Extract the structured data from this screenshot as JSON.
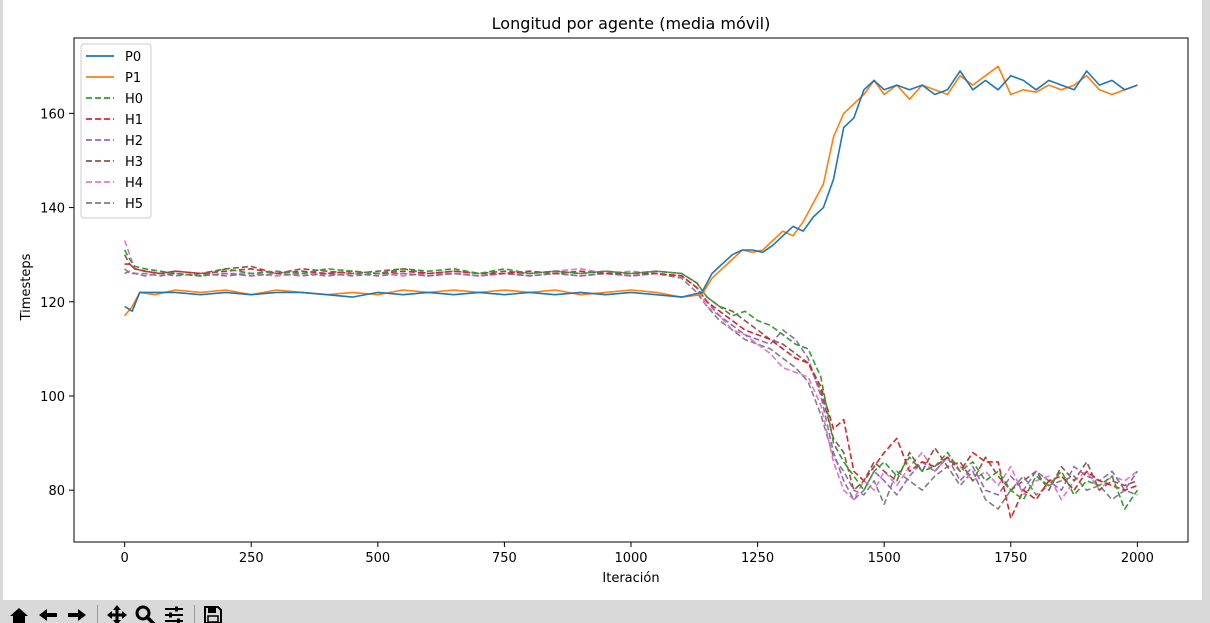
{
  "chart_data": {
    "type": "line",
    "title": "Longitud por agente (media móvil)",
    "xlabel": "Iteración",
    "ylabel": "Timesteps",
    "xlim": [
      -100,
      2100
    ],
    "ylim": [
      69,
      176
    ],
    "xticks": [
      0,
      250,
      500,
      750,
      1000,
      1250,
      1500,
      1750,
      2000
    ],
    "yticks": [
      80,
      100,
      120,
      140,
      160
    ],
    "grid": false,
    "legend_position": "top-left",
    "series": [
      {
        "name": "P0",
        "color": "#1f77b4",
        "dash": "solid",
        "x": [
          0,
          15,
          30,
          60,
          100,
          150,
          200,
          250,
          300,
          350,
          400,
          450,
          500,
          550,
          600,
          650,
          700,
          750,
          800,
          850,
          900,
          950,
          1000,
          1050,
          1100,
          1140,
          1160,
          1180,
          1200,
          1220,
          1240,
          1260,
          1280,
          1300,
          1320,
          1340,
          1360,
          1380,
          1400,
          1420,
          1440,
          1460,
          1480,
          1500,
          1525,
          1550,
          1575,
          1600,
          1625,
          1650,
          1675,
          1700,
          1725,
          1750,
          1775,
          1800,
          1825,
          1850,
          1875,
          1900,
          1925,
          1950,
          1975,
          2000
        ],
        "y": [
          119,
          118,
          122,
          122,
          122,
          121.5,
          122,
          121.5,
          122,
          122,
          121.5,
          121,
          122,
          121.5,
          122,
          121.5,
          122,
          121.5,
          122,
          121.5,
          122,
          121.5,
          122,
          121.5,
          121,
          122,
          126,
          128,
          130,
          131,
          131,
          130.5,
          132,
          134,
          136,
          135,
          138,
          140,
          146,
          157,
          159,
          165,
          167,
          165,
          166,
          165,
          166,
          164,
          165,
          169,
          165,
          167,
          165,
          168,
          167,
          165,
          167,
          166,
          165,
          169,
          166,
          167,
          165,
          166
        ]
      },
      {
        "name": "P1",
        "color": "#ff7f0e",
        "dash": "solid",
        "x": [
          0,
          15,
          30,
          60,
          100,
          150,
          200,
          250,
          300,
          350,
          400,
          450,
          500,
          550,
          600,
          650,
          700,
          750,
          800,
          850,
          900,
          950,
          1000,
          1050,
          1100,
          1140,
          1160,
          1180,
          1200,
          1220,
          1240,
          1260,
          1280,
          1300,
          1320,
          1340,
          1360,
          1380,
          1400,
          1420,
          1440,
          1460,
          1480,
          1500,
          1525,
          1550,
          1575,
          1600,
          1625,
          1650,
          1675,
          1700,
          1725,
          1750,
          1775,
          1800,
          1825,
          1850,
          1875,
          1900,
          1925,
          1950,
          1975,
          2000
        ],
        "y": [
          117,
          119,
          122,
          121.5,
          122.5,
          122,
          122.5,
          121.5,
          122.5,
          122,
          121.5,
          122,
          121.5,
          122.5,
          122,
          122.5,
          122,
          122.5,
          122,
          122.5,
          121.5,
          122,
          122.5,
          122,
          121,
          121.5,
          125,
          127,
          129,
          131,
          130.5,
          131,
          133,
          135,
          134,
          137,
          141,
          145,
          155,
          160,
          162,
          164,
          167,
          164,
          166,
          163,
          166,
          165,
          164,
          168,
          166,
          168,
          170,
          164,
          165,
          164.5,
          166,
          165,
          166,
          168,
          165,
          164,
          165,
          166
        ]
      },
      {
        "name": "H0",
        "color": "#2ca02c",
        "dash": "dashed",
        "x": [
          0,
          10,
          20,
          40,
          70,
          100,
          150,
          200,
          250,
          300,
          350,
          400,
          450,
          500,
          550,
          600,
          650,
          700,
          750,
          800,
          850,
          900,
          950,
          1000,
          1050,
          1100,
          1130,
          1150,
          1175,
          1200,
          1225,
          1250,
          1275,
          1300,
          1325,
          1350,
          1375,
          1400,
          1420,
          1440,
          1460,
          1480,
          1500,
          1525,
          1550,
          1575,
          1600,
          1625,
          1650,
          1675,
          1700,
          1725,
          1750,
          1775,
          1800,
          1825,
          1850,
          1875,
          1900,
          1925,
          1950,
          1975,
          2000
        ],
        "y": [
          131,
          129,
          127.5,
          127,
          126.5,
          126,
          125.5,
          127,
          126,
          126.5,
          126,
          127,
          126.5,
          126,
          127,
          126.5,
          127,
          126,
          127,
          126,
          126.5,
          126,
          126.5,
          126,
          126.5,
          126,
          124,
          121,
          119,
          117,
          118,
          116,
          115,
          113,
          111,
          110,
          104,
          90,
          86,
          83,
          80,
          84,
          86,
          83,
          87,
          84,
          85,
          88,
          84,
          86,
          82,
          84,
          80,
          78,
          83,
          81,
          84,
          79,
          82,
          81,
          83,
          76,
          80
        ]
      },
      {
        "name": "H1",
        "color": "#d62728",
        "dash": "dashed",
        "x": [
          0,
          10,
          20,
          40,
          70,
          100,
          150,
          200,
          250,
          300,
          350,
          400,
          450,
          500,
          550,
          600,
          650,
          700,
          750,
          800,
          850,
          900,
          950,
          1000,
          1050,
          1100,
          1130,
          1150,
          1175,
          1200,
          1225,
          1250,
          1275,
          1300,
          1325,
          1350,
          1375,
          1400,
          1420,
          1440,
          1460,
          1480,
          1500,
          1525,
          1550,
          1575,
          1600,
          1625,
          1650,
          1675,
          1700,
          1725,
          1750,
          1775,
          1800,
          1825,
          1850,
          1875,
          1900,
          1925,
          1950,
          1975,
          2000
        ],
        "y": [
          128,
          128,
          127,
          126.5,
          126,
          126.5,
          126,
          126.5,
          127,
          126,
          126.5,
          126,
          126.5,
          126,
          126.5,
          126,
          126.5,
          126,
          126,
          126.5,
          126,
          126.5,
          126,
          126,
          126,
          125.5,
          123,
          120,
          118,
          116,
          114,
          113,
          112,
          110,
          108,
          107,
          102,
          93,
          95,
          84,
          82,
          85,
          88,
          91,
          84,
          86,
          85,
          87,
          84,
          88,
          86,
          86,
          74,
          80,
          78,
          82,
          83,
          80,
          84,
          82,
          81,
          80,
          81
        ]
      },
      {
        "name": "H2",
        "color": "#9467bd",
        "dash": "dashed",
        "x": [
          0,
          10,
          20,
          40,
          70,
          100,
          150,
          200,
          250,
          300,
          350,
          400,
          450,
          500,
          550,
          600,
          650,
          700,
          750,
          800,
          850,
          900,
          950,
          1000,
          1050,
          1100,
          1130,
          1150,
          1175,
          1200,
          1225,
          1250,
          1275,
          1300,
          1325,
          1350,
          1375,
          1400,
          1420,
          1440,
          1460,
          1480,
          1500,
          1525,
          1550,
          1575,
          1600,
          1625,
          1650,
          1675,
          1700,
          1725,
          1750,
          1775,
          1800,
          1825,
          1850,
          1875,
          1900,
          1925,
          1950,
          1975,
          2000
        ],
        "y": [
          126,
          126.5,
          126,
          126,
          125.5,
          126,
          125.5,
          126,
          125.5,
          126,
          125.5,
          126,
          125.5,
          126,
          126,
          125.5,
          126,
          125.5,
          126,
          125.5,
          126,
          125.5,
          126,
          125.5,
          126,
          125.5,
          123,
          120,
          117,
          115,
          113,
          112,
          111,
          114,
          112,
          108,
          100,
          88,
          82,
          78,
          80,
          84,
          82,
          79,
          83,
          86,
          84,
          87,
          82,
          85,
          80,
          79,
          83,
          80,
          84,
          82,
          80,
          85,
          83,
          82,
          84,
          80,
          84
        ]
      },
      {
        "name": "H3",
        "color": "#8c564b",
        "dash": "dashed",
        "x": [
          0,
          10,
          20,
          40,
          70,
          100,
          150,
          200,
          250,
          300,
          350,
          400,
          450,
          500,
          550,
          600,
          650,
          700,
          750,
          800,
          850,
          900,
          950,
          1000,
          1050,
          1100,
          1130,
          1150,
          1175,
          1200,
          1225,
          1250,
          1275,
          1300,
          1325,
          1350,
          1375,
          1400,
          1420,
          1440,
          1460,
          1480,
          1500,
          1525,
          1550,
          1575,
          1600,
          1625,
          1650,
          1675,
          1700,
          1725,
          1750,
          1775,
          1800,
          1825,
          1850,
          1875,
          1900,
          1925,
          1950,
          1975,
          2000
        ],
        "y": [
          130,
          128,
          127,
          126.5,
          126,
          126.5,
          126,
          127,
          127.5,
          126,
          127,
          126.5,
          126,
          126.5,
          127,
          126,
          126.5,
          126,
          126.5,
          126,
          126.5,
          126,
          126.5,
          126,
          126.5,
          126,
          124,
          121,
          119,
          118,
          116,
          114,
          112,
          111,
          109,
          107,
          101,
          91,
          88,
          80,
          82,
          86,
          84,
          82,
          88,
          84,
          89,
          85,
          86,
          82,
          87,
          83,
          80,
          82,
          84,
          80,
          85,
          82,
          86,
          80,
          82,
          81,
          82
        ]
      },
      {
        "name": "H4",
        "color": "#e377c2",
        "dash": "dashed",
        "x": [
          0,
          10,
          20,
          40,
          70,
          100,
          150,
          200,
          250,
          300,
          350,
          400,
          450,
          500,
          550,
          600,
          650,
          700,
          750,
          800,
          850,
          900,
          950,
          1000,
          1050,
          1100,
          1130,
          1150,
          1175,
          1200,
          1225,
          1250,
          1275,
          1300,
          1325,
          1350,
          1375,
          1400,
          1420,
          1440,
          1460,
          1480,
          1500,
          1525,
          1550,
          1575,
          1600,
          1625,
          1650,
          1675,
          1700,
          1725,
          1750,
          1775,
          1800,
          1825,
          1850,
          1875,
          1900,
          1925,
          1950,
          1975,
          2000
        ],
        "y": [
          133,
          130,
          127,
          126.5,
          126,
          126,
          125.5,
          126,
          126,
          125.5,
          126,
          126,
          126.5,
          126,
          125.5,
          126,
          126,
          125.5,
          126,
          126,
          126.5,
          127,
          126,
          126.5,
          126,
          125.5,
          123,
          119,
          117,
          114,
          113,
          111,
          109,
          106,
          105,
          104,
          98,
          86,
          80,
          78,
          82,
          80,
          84,
          81,
          85,
          88,
          84,
          87,
          85,
          82,
          84,
          81,
          85,
          79,
          82,
          83,
          78,
          82,
          84,
          80,
          83,
          82,
          84
        ]
      },
      {
        "name": "H5",
        "color": "#7f7f7f",
        "dash": "dashed",
        "x": [
          0,
          10,
          20,
          40,
          70,
          100,
          150,
          200,
          250,
          300,
          350,
          400,
          450,
          500,
          550,
          600,
          650,
          700,
          750,
          800,
          850,
          900,
          950,
          1000,
          1050,
          1100,
          1130,
          1150,
          1175,
          1200,
          1225,
          1250,
          1275,
          1300,
          1325,
          1350,
          1375,
          1400,
          1420,
          1440,
          1460,
          1480,
          1500,
          1525,
          1550,
          1575,
          1600,
          1625,
          1650,
          1675,
          1700,
          1725,
          1750,
          1775,
          1800,
          1825,
          1850,
          1875,
          1900,
          1925,
          1950,
          1975,
          2000
        ],
        "y": [
          127,
          126,
          126,
          125.5,
          126,
          125.5,
          126,
          125.5,
          126,
          125.5,
          126,
          125.5,
          126,
          125.5,
          126,
          125.5,
          126,
          125.5,
          126,
          125.5,
          126,
          125.5,
          126,
          125.5,
          126,
          125,
          122,
          119,
          116,
          114,
          112,
          111,
          110,
          108,
          106,
          103,
          96,
          87,
          84,
          80,
          79,
          82,
          77,
          84,
          82,
          80,
          83,
          85,
          81,
          84,
          78,
          76,
          80,
          83,
          79,
          81,
          82,
          83,
          80,
          81,
          78,
          80,
          79
        ]
      }
    ]
  },
  "toolbar": {
    "items": [
      {
        "name": "home-icon"
      },
      {
        "name": "back-arrow-icon"
      },
      {
        "name": "forward-arrow-icon"
      },
      {
        "name": "pan-move-icon"
      },
      {
        "name": "zoom-magnifier-icon"
      },
      {
        "name": "subplots-config-icon"
      },
      {
        "name": "save-floppy-icon"
      }
    ]
  }
}
